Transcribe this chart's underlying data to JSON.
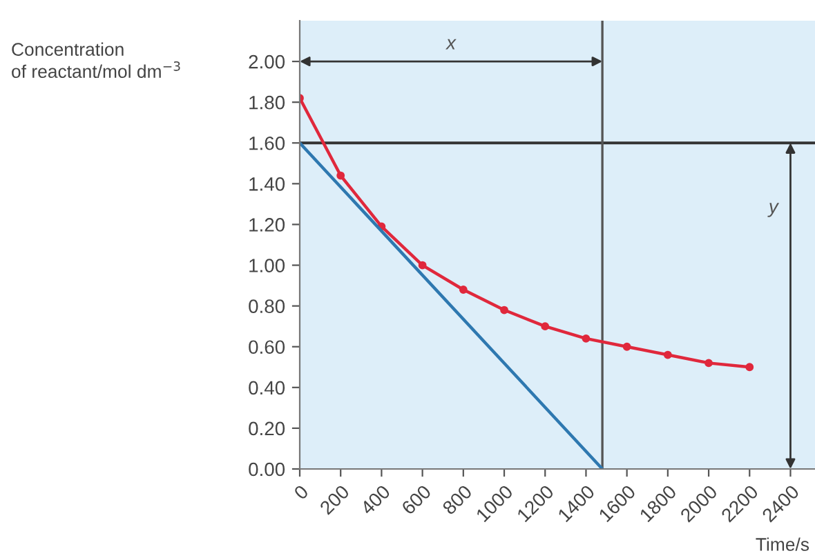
{
  "chart_data": {
    "type": "line",
    "xlabel": "Time/s",
    "ylabel": "Concentration\nof reactant/mol dm$^{−3}$",
    "series": [
      {
        "color": "#e0283c",
        "marker": "circle",
        "x": [
          0,
          200,
          400,
          600,
          800,
          1000,
          1200,
          1400,
          1600,
          1800,
          2000,
          2200
        ],
        "values": [
          1.82,
          1.44,
          1.19,
          1.0,
          0.88,
          0.78,
          0.7,
          0.64,
          0.6,
          0.56,
          0.52,
          0.5
        ]
      },
      {
        "color": "#2e78b0",
        "marker": "none",
        "x": [
          0,
          1480
        ],
        "values": [
          1.6,
          0
        ]
      }
    ],
    "ref_lines": [
      {
        "axis": "y",
        "value": 1.6,
        "color": "#333333"
      },
      {
        "axis": "x",
        "value": 1480,
        "color": "#555555"
      }
    ],
    "annotations": [
      "x",
      "y"
    ],
    "xlim": [
      0,
      2520
    ],
    "ylim": [
      0,
      2.2
    ],
    "xticks": [
      0,
      200,
      400,
      600,
      800,
      1000,
      1200,
      1400,
      1600,
      1800,
      2000,
      2200,
      2400
    ],
    "yticks": [
      {
        "value": 0,
        "label": "0.00"
      },
      {
        "value": 0.2,
        "label": "0.20"
      },
      {
        "value": 0.4,
        "label": "0.40"
      },
      {
        "value": 0.6,
        "label": "0.60"
      },
      {
        "value": 0.8,
        "label": "0.80"
      },
      {
        "value": 1.0,
        "label": "1.00"
      },
      {
        "value": 1.2,
        "label": "1.20"
      },
      {
        "value": 1.4,
        "label": "1.40"
      },
      {
        "value": 1.6,
        "label": "1.60"
      },
      {
        "value": 1.8,
        "label": "1.80"
      },
      {
        "value": 2.0,
        "label": "2.00"
      }
    ],
    "grid": false
  }
}
